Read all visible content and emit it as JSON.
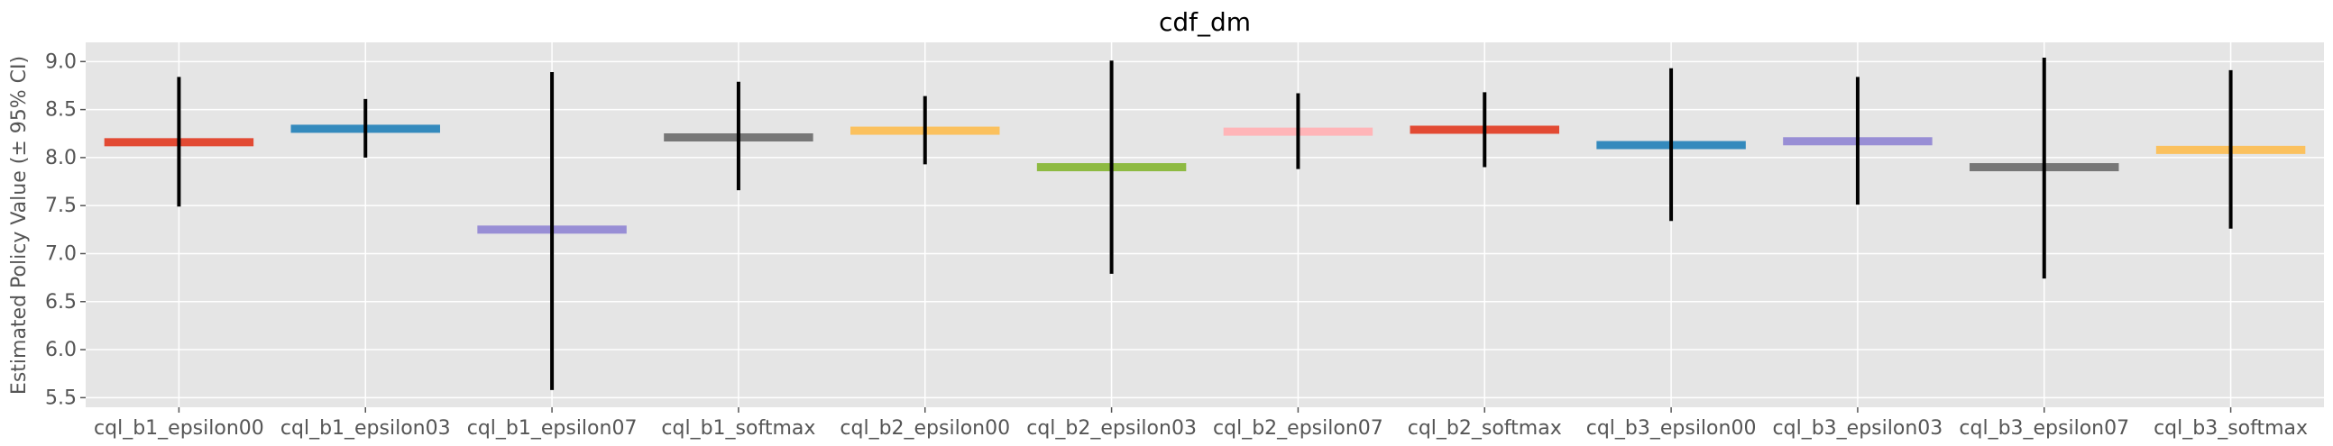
{
  "chart_data": {
    "type": "bar",
    "title": "cdf_dm",
    "xlabel": "",
    "ylabel": "Estimated Policy Value (± 95% CI)",
    "ylim": [
      5.4,
      9.2
    ],
    "yticks": [
      "5.5",
      "6.0",
      "6.5",
      "7.0",
      "7.5",
      "8.0",
      "8.5",
      "9.0"
    ],
    "ytick_values": [
      5.5,
      6.0,
      6.5,
      7.0,
      7.5,
      8.0,
      8.5,
      9.0
    ],
    "grid": true,
    "categories": [
      "cql_b1_epsilon00",
      "cql_b1_epsilon03",
      "cql_b1_epsilon07",
      "cql_b1_softmax",
      "cql_b2_epsilon00",
      "cql_b2_epsilon03",
      "cql_b2_epsilon07",
      "cql_b2_softmax",
      "cql_b3_epsilon00",
      "cql_b3_epsilon03",
      "cql_b3_epsilon07",
      "cql_b3_softmax"
    ],
    "values": [
      8.16,
      8.3,
      7.25,
      8.21,
      8.28,
      7.9,
      8.27,
      8.29,
      8.13,
      8.17,
      7.9,
      8.08
    ],
    "ci_low": [
      7.49,
      8.0,
      5.58,
      7.66,
      7.93,
      6.79,
      7.88,
      7.9,
      7.34,
      7.51,
      6.74,
      7.26
    ],
    "ci_high": [
      8.84,
      8.61,
      8.89,
      8.79,
      8.64,
      9.01,
      8.67,
      8.68,
      8.93,
      8.84,
      9.04,
      8.91
    ],
    "colors": [
      "#E24A33",
      "#348ABD",
      "#988ED5",
      "#777777",
      "#FBC15E",
      "#8EBA42",
      "#FFB5B8",
      "#E24A33",
      "#348ABD",
      "#988ED5",
      "#777777",
      "#FBC15E"
    ],
    "background": "#E5E5E5",
    "grid_color": "#FFFFFF",
    "errorbar_color": "#000000"
  }
}
